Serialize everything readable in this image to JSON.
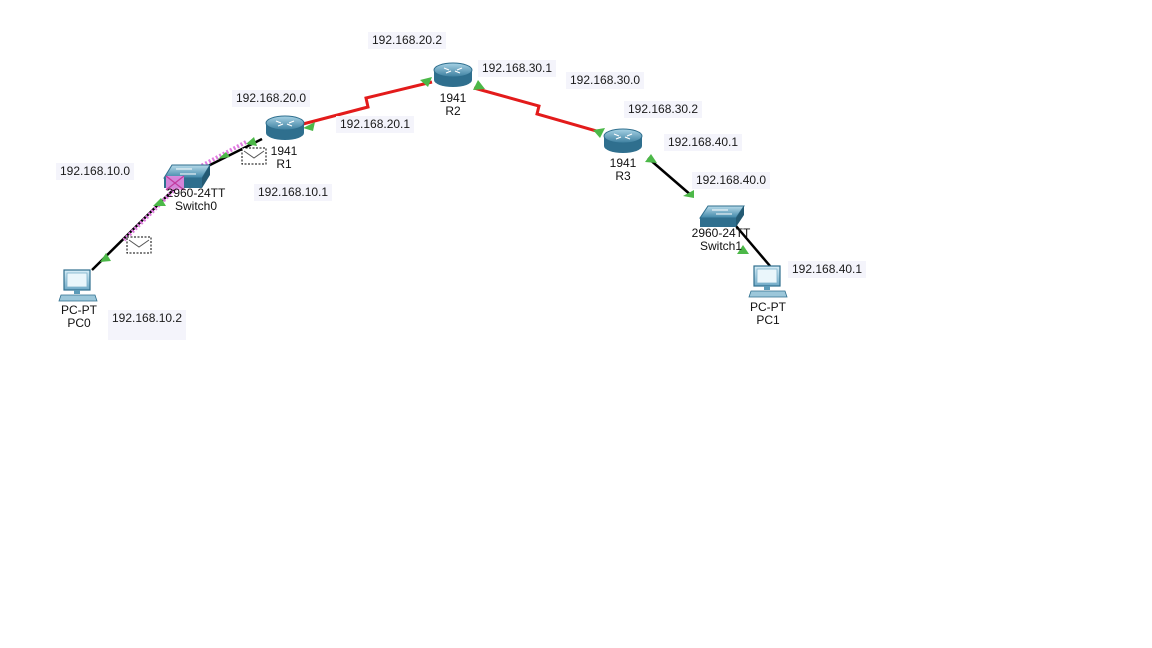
{
  "devices": {
    "r1": {
      "model": "1941",
      "name": "R1"
    },
    "r2": {
      "model": "1941",
      "name": "R2"
    },
    "r3": {
      "model": "1941",
      "name": "R3"
    },
    "switch0": {
      "model": "2960-24TT",
      "name": "Switch0"
    },
    "switch1": {
      "model": "2960-24TT",
      "name": "Switch1"
    },
    "pc0": {
      "model": "PC-PT",
      "name": "PC0"
    },
    "pc1": {
      "model": "PC-PT",
      "name": "PC1"
    }
  },
  "labels": {
    "net_20_2": "192.168.20.2",
    "net_30_1": "192.168.30.1",
    "net_30_0": "192.168.30.0",
    "net_30_2": "192.168.30.2",
    "net_20_0": "192.168.20.0",
    "net_20_1": "192.168.20.1",
    "net_40_1_r3": "192.168.40.1",
    "net_40_0": "192.168.40.0",
    "net_40_1_pc": "192.168.40.1",
    "net_10_0": "192.168.10.0",
    "net_10_1": "192.168.10.1",
    "net_10_2": "192.168.10.2"
  },
  "colors": {
    "serial_link": "#e31b1b",
    "ethernet_link": "#000000",
    "port_up": "#4cb848",
    "pdu_path": "#e07be0",
    "device_blue": "#4a8fb0"
  }
}
